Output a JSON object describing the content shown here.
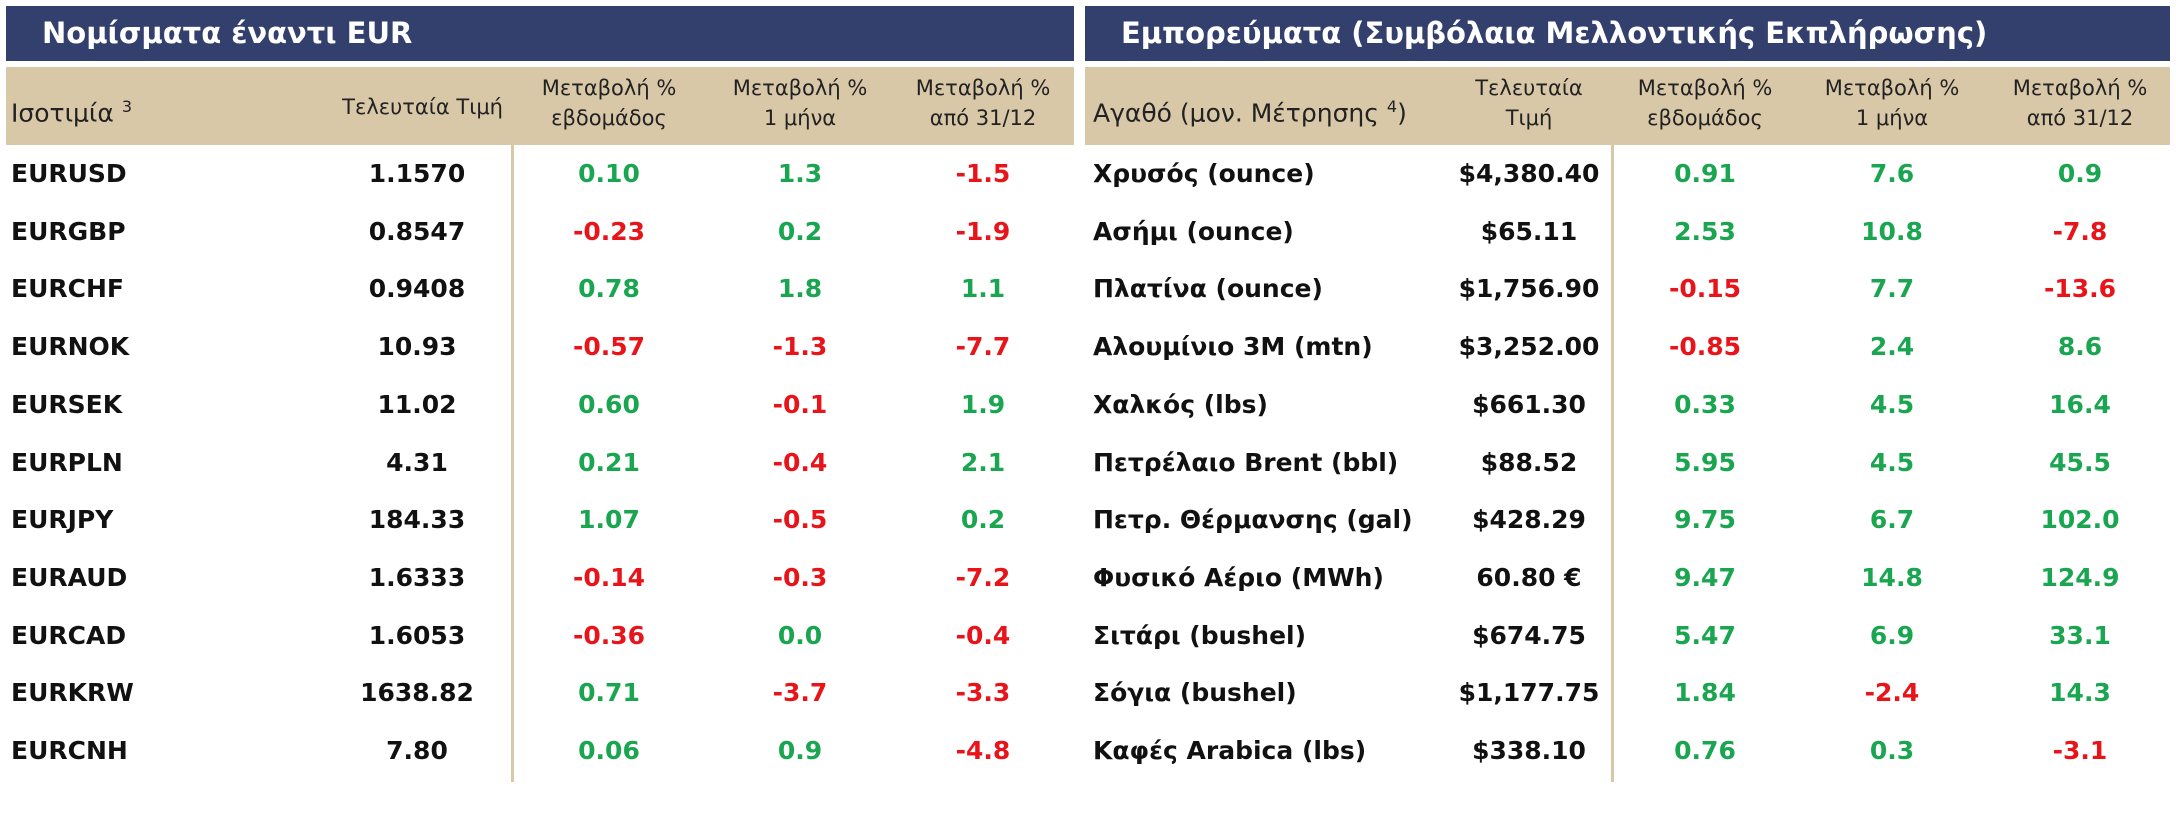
{
  "tables": [
    {
      "title": "Νομίσματα έναντι EUR",
      "headers": [
        {
          "text": "Ισοτιμία",
          "sup": "3"
        },
        {
          "text": "Τελευταία Τιμή"
        },
        {
          "text": "Μεταβολή %",
          "line2": "εβδομάδος"
        },
        {
          "text": "Μεταβολή %",
          "line2": "1 μήνα"
        },
        {
          "text": "Μεταβολή %",
          "line2": "από 31/12"
        }
      ],
      "rows": [
        [
          "EURUSD",
          "1.1570",
          "0.10",
          "1.3",
          "-1.5"
        ],
        [
          "EURGBP",
          "0.8547",
          "-0.23",
          "0.2",
          "-1.9"
        ],
        [
          "EURCHF",
          "0.9408",
          "0.78",
          "1.8",
          "1.1"
        ],
        [
          "EURNOK",
          "10.93",
          "-0.57",
          "-1.3",
          "-7.7"
        ],
        [
          "EURSEK",
          "11.02",
          "0.60",
          "-0.1",
          "1.9"
        ],
        [
          "EURPLN",
          "4.31",
          "0.21",
          "-0.4",
          "2.1"
        ],
        [
          "EURJPY",
          "184.33",
          "1.07",
          "-0.5",
          "0.2"
        ],
        [
          "EURAUD",
          "1.6333",
          "-0.14",
          "-0.3",
          "-7.2"
        ],
        [
          "EURCAD",
          "1.6053",
          "-0.36",
          "0.0",
          "-0.4"
        ],
        [
          "EURKRW",
          "1638.82",
          "0.71",
          "-3.7",
          "-3.3"
        ],
        [
          "EURCNH",
          "7.80",
          "0.06",
          "0.9",
          "-4.8"
        ]
      ]
    },
    {
      "title": "Εμπορεύματα (Συμβόλαια Μελλοντικής Εκπλήρωσης)",
      "headers": [
        {
          "text": "Αγαθό (μον. Μέτρησης",
          "sup": "4",
          "after": ")"
        },
        {
          "text": "Τελευταία",
          "line2": "Τιμή"
        },
        {
          "text": "Μεταβολή %",
          "line2": "εβδομάδος"
        },
        {
          "text": "Μεταβολή %",
          "line2": "1 μήνα"
        },
        {
          "text": "Μεταβολή %",
          "line2": "από 31/12"
        }
      ],
      "rows": [
        [
          "Χρυσός (ounce)",
          "$4,380.40",
          "0.91",
          "7.6",
          "0.9"
        ],
        [
          "Ασήμι (ounce)",
          "$65.11",
          "2.53",
          "10.8",
          "-7.8"
        ],
        [
          "Πλατίνα (ounce)",
          "$1,756.90",
          "-0.15",
          "7.7",
          "-13.6"
        ],
        [
          "Αλουμίνιο 3M (mtn)",
          "$3,252.00",
          "-0.85",
          "2.4",
          "8.6"
        ],
        [
          "Χαλκός (lbs)",
          "$661.30",
          "0.33",
          "4.5",
          "16.4"
        ],
        [
          "Πετρέλαιο Brent (bbl)",
          "$88.52",
          "5.95",
          "4.5",
          "45.5"
        ],
        [
          "Πετρ. Θέρμανσης (gal)",
          "$428.29",
          "9.75",
          "6.7",
          "102.0"
        ],
        [
          "Φυσικό Αέριο (MWh)",
          "60.80 €",
          "9.47",
          "14.8",
          "124.9"
        ],
        [
          "Σιτάρι (bushel)",
          "$674.75",
          "5.47",
          "6.9",
          "33.1"
        ],
        [
          "Σόγια (bushel)",
          "$1,177.75",
          "1.84",
          "-2.4",
          "14.3"
        ],
        [
          "Καφές Arabica (lbs)",
          "$338.10",
          "0.76",
          "0.3",
          "-3.1"
        ]
      ]
    }
  ]
}
